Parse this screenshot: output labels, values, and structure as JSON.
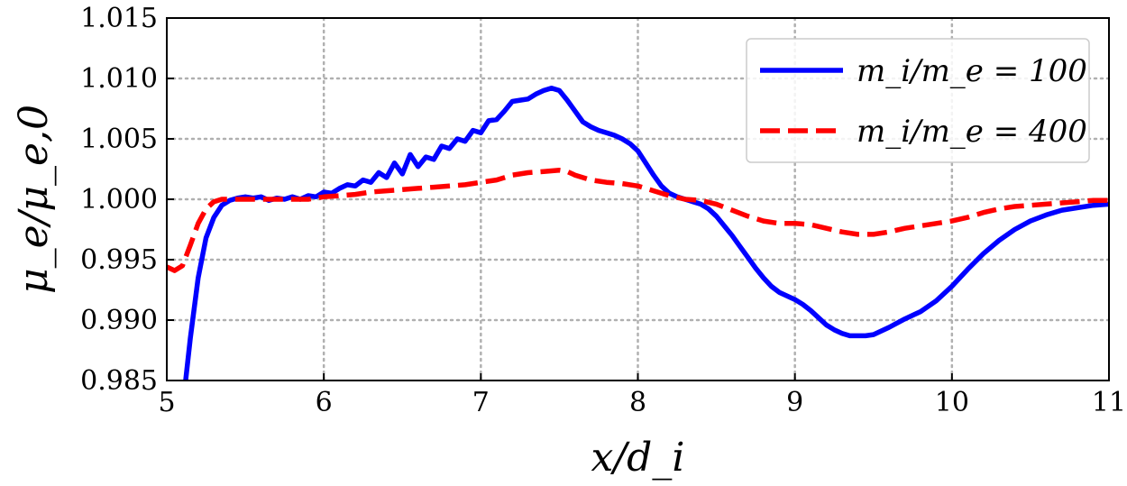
{
  "chart_data": {
    "type": "line",
    "title": "",
    "xlabel": "x/d_i",
    "ylabel": "μ_e/μ_e,0",
    "xlim": [
      5,
      11
    ],
    "ylim": [
      0.985,
      1.015
    ],
    "xticks": [
      5,
      6,
      7,
      8,
      9,
      10,
      11
    ],
    "xtick_labels": [
      "5",
      "6",
      "7",
      "8",
      "9",
      "10",
      "11"
    ],
    "yticks": [
      0.985,
      0.99,
      0.995,
      1.0,
      1.005,
      1.01,
      1.015
    ],
    "ytick_labels": [
      "0.985",
      "0.990",
      "0.995",
      "1.000",
      "1.005",
      "1.010",
      "1.015"
    ],
    "grid": true,
    "legend_position": "top-right",
    "series": [
      {
        "name": "m_i/m_e = 100",
        "color": "#0000ff",
        "style": "solid",
        "x": [
          5.12,
          5.15,
          5.2,
          5.25,
          5.3,
          5.35,
          5.4,
          5.45,
          5.5,
          5.55,
          5.6,
          5.65,
          5.7,
          5.75,
          5.8,
          5.85,
          5.9,
          5.95,
          6.0,
          6.05,
          6.1,
          6.15,
          6.2,
          6.25,
          6.3,
          6.35,
          6.4,
          6.45,
          6.5,
          6.55,
          6.6,
          6.65,
          6.7,
          6.75,
          6.8,
          6.85,
          6.9,
          6.95,
          7.0,
          7.05,
          7.1,
          7.15,
          7.2,
          7.25,
          7.3,
          7.35,
          7.4,
          7.45,
          7.5,
          7.55,
          7.6,
          7.65,
          7.7,
          7.75,
          7.8,
          7.85,
          7.9,
          7.95,
          8.0,
          8.05,
          8.1,
          8.15,
          8.2,
          8.25,
          8.3,
          8.35,
          8.4,
          8.45,
          8.5,
          8.55,
          8.6,
          8.65,
          8.7,
          8.75,
          8.8,
          8.85,
          8.9,
          8.95,
          9.0,
          9.05,
          9.1,
          9.15,
          9.2,
          9.25,
          9.3,
          9.35,
          9.4,
          9.45,
          9.5,
          9.6,
          9.7,
          9.8,
          9.9,
          10.0,
          10.1,
          10.2,
          10.3,
          10.4,
          10.5,
          10.6,
          10.7,
          10.8,
          10.9,
          11.0
        ],
        "y": [
          0.985,
          0.9885,
          0.9935,
          0.9968,
          0.9985,
          0.9995,
          0.9999,
          1.0001,
          1.0002,
          1.0001,
          1.0002,
          0.9999,
          1.0001,
          1.0,
          1.0002,
          1.0,
          1.0003,
          1.0002,
          1.0006,
          1.0005,
          1.0009,
          1.0012,
          1.0011,
          1.0016,
          1.0014,
          1.0022,
          1.0018,
          1.003,
          1.0021,
          1.0037,
          1.0027,
          1.0035,
          1.0033,
          1.0044,
          1.0042,
          1.005,
          1.0048,
          1.0057,
          1.0055,
          1.0065,
          1.0066,
          1.0073,
          1.0081,
          1.0082,
          1.0083,
          1.0087,
          1.009,
          1.0092,
          1.009,
          1.0082,
          1.0073,
          1.0064,
          1.006,
          1.0057,
          1.0055,
          1.0053,
          1.005,
          1.0046,
          1.004,
          1.003,
          1.002,
          1.0011,
          1.0005,
          1.0002,
          1.0,
          0.9998,
          0.9996,
          0.9992,
          0.9986,
          0.9978,
          0.997,
          0.9961,
          0.9952,
          0.9943,
          0.9935,
          0.9928,
          0.9923,
          0.992,
          0.9917,
          0.9913,
          0.9908,
          0.9902,
          0.9896,
          0.9892,
          0.9889,
          0.9887,
          0.9887,
          0.9887,
          0.9888,
          0.9894,
          0.9901,
          0.9907,
          0.9916,
          0.9928,
          0.9942,
          0.9955,
          0.9966,
          0.9975,
          0.9982,
          0.9987,
          0.9991,
          0.9993,
          0.9995,
          0.9996
        ]
      },
      {
        "name": "m_i/m_e = 400",
        "color": "#ff0000",
        "style": "dashed",
        "x": [
          5.0,
          5.05,
          5.1,
          5.15,
          5.2,
          5.25,
          5.3,
          5.35,
          5.4,
          5.5,
          5.6,
          5.7,
          5.8,
          5.9,
          6.0,
          6.1,
          6.2,
          6.3,
          6.4,
          6.5,
          6.6,
          6.7,
          6.8,
          6.9,
          7.0,
          7.1,
          7.2,
          7.3,
          7.4,
          7.5,
          7.55,
          7.6,
          7.7,
          7.8,
          7.9,
          8.0,
          8.1,
          8.2,
          8.3,
          8.4,
          8.5,
          8.6,
          8.7,
          8.8,
          8.9,
          9.0,
          9.1,
          9.2,
          9.3,
          9.4,
          9.5,
          9.6,
          9.7,
          9.8,
          9.9,
          10.0,
          10.1,
          10.2,
          10.3,
          10.4,
          10.5,
          10.6,
          10.7,
          10.8,
          10.9,
          11.0
        ],
        "y": [
          0.9944,
          0.9941,
          0.9945,
          0.9962,
          0.998,
          0.9992,
          0.9998,
          1.0,
          1.0,
          1.0,
          1.0,
          1.0,
          1.0,
          1.0,
          1.0002,
          1.0003,
          1.0004,
          1.0006,
          1.0007,
          1.0008,
          1.0009,
          1.001,
          1.0011,
          1.0012,
          1.0014,
          1.0016,
          1.002,
          1.0022,
          1.0023,
          1.0024,
          1.0023,
          1.002,
          1.0016,
          1.0014,
          1.0013,
          1.0011,
          1.0007,
          1.0003,
          1.0,
          0.9999,
          0.9996,
          0.9991,
          0.9986,
          0.9982,
          0.998,
          0.998,
          0.9979,
          0.9976,
          0.9973,
          0.9971,
          0.9971,
          0.9973,
          0.9976,
          0.9978,
          0.998,
          0.9982,
          0.9985,
          0.9989,
          0.9992,
          0.9994,
          0.9995,
          0.9996,
          0.9997,
          0.9998,
          0.9999,
          0.9999
        ]
      }
    ]
  }
}
